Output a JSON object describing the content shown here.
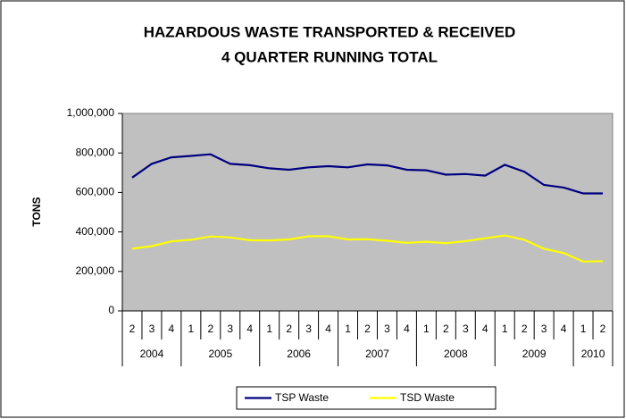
{
  "chart_data": {
    "type": "line",
    "title": "HAZARDOUS WASTE TRANSPORTED & RECEIVED",
    "subtitle": "4 QUARTER RUNNING TOTAL",
    "y_label": "TONS",
    "year_groups": [
      {
        "label": "2004",
        "quarters": [
          "2",
          "3",
          "4"
        ]
      },
      {
        "label": "2005",
        "quarters": [
          "1",
          "2",
          "3",
          "4"
        ]
      },
      {
        "label": "2006",
        "quarters": [
          "1",
          "2",
          "3",
          "4"
        ]
      },
      {
        "label": "2007",
        "quarters": [
          "1",
          "2",
          "3",
          "4"
        ]
      },
      {
        "label": "2008",
        "quarters": [
          "1",
          "2",
          "3",
          "4"
        ]
      },
      {
        "label": "2009",
        "quarters": [
          "1",
          "2",
          "3",
          "4"
        ]
      },
      {
        "label": "2010",
        "quarters": [
          "1",
          "2"
        ]
      }
    ],
    "series": [
      {
        "name": "TSP Waste",
        "color": "#000080",
        "values": [
          675000,
          745000,
          778000,
          785000,
          793000,
          745000,
          738000,
          722000,
          715000,
          727000,
          733000,
          727000,
          742000,
          737000,
          715000,
          712000,
          690000,
          693000,
          685000,
          740000,
          705000,
          638000,
          625000,
          595000,
          595000
        ]
      },
      {
        "name": "TSD Waste",
        "color": "#ffff00",
        "values": [
          315000,
          328000,
          352000,
          360000,
          377000,
          372000,
          358000,
          357000,
          362000,
          378000,
          378000,
          362000,
          363000,
          355000,
          345000,
          350000,
          343000,
          353000,
          368000,
          382000,
          360000,
          315000,
          293000,
          250000,
          252000
        ]
      }
    ],
    "ylim": [
      0,
      1000000
    ],
    "yticks": [
      0,
      {
        "value": 200000,
        "label": "200,000"
      },
      {
        "value": 400000,
        "label": "400,000"
      },
      {
        "value": 600000,
        "label": "600,000"
      },
      {
        "value": 800000,
        "label": "800,000"
      },
      {
        "value": 1000000,
        "label": "1,000,000"
      }
    ],
    "grid": false,
    "plot_background": "#c0c0c0",
    "legend": "bottom"
  }
}
